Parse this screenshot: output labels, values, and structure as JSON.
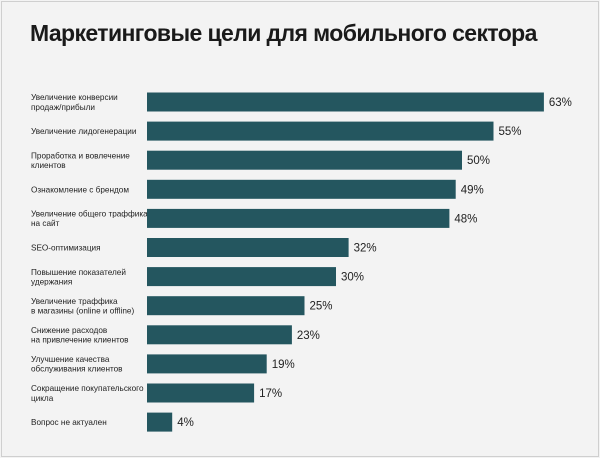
{
  "title": "Маркетинговые цели для мобильного сектора",
  "colors": {
    "bar": "#24565f",
    "text": "#222222",
    "background": "#f3f3f3"
  },
  "chart_data": {
    "type": "bar",
    "orientation": "horizontal",
    "title": "Маркетинговые цели для мобильного сектора",
    "xlabel": "",
    "ylabel": "",
    "unit": "%",
    "grid": false,
    "xlim": [
      0,
      70
    ],
    "categories": [
      [
        "Увеличение конверсии",
        "продаж/прибыли"
      ],
      [
        "Увеличение лидогенерации"
      ],
      [
        "Проработка и вовлечение",
        "клиентов"
      ],
      [
        "Ознакомление с брендом"
      ],
      [
        "Увеличение общего траффика",
        "на сайт"
      ],
      [
        "SEO-оптимизация"
      ],
      [
        "Повышение показателей",
        "удержания"
      ],
      [
        "Увеличение траффика",
        "в магазины (online и offline)"
      ],
      [
        "Снижение расходов",
        "на привлечение клиентов"
      ],
      [
        "Улучшение качества",
        "обслуживания клиентов"
      ],
      [
        "Сокращение покупательского",
        "цикла"
      ],
      [
        "Вопрос не актуален"
      ]
    ],
    "values": [
      63,
      55,
      50,
      49,
      48,
      32,
      30,
      25,
      23,
      19,
      17,
      4
    ],
    "value_labels": [
      "63%",
      "55%",
      "50%",
      "49%",
      "48%",
      "32%",
      "30%",
      "25%",
      "23%",
      "19%",
      "17%",
      "4%"
    ]
  }
}
